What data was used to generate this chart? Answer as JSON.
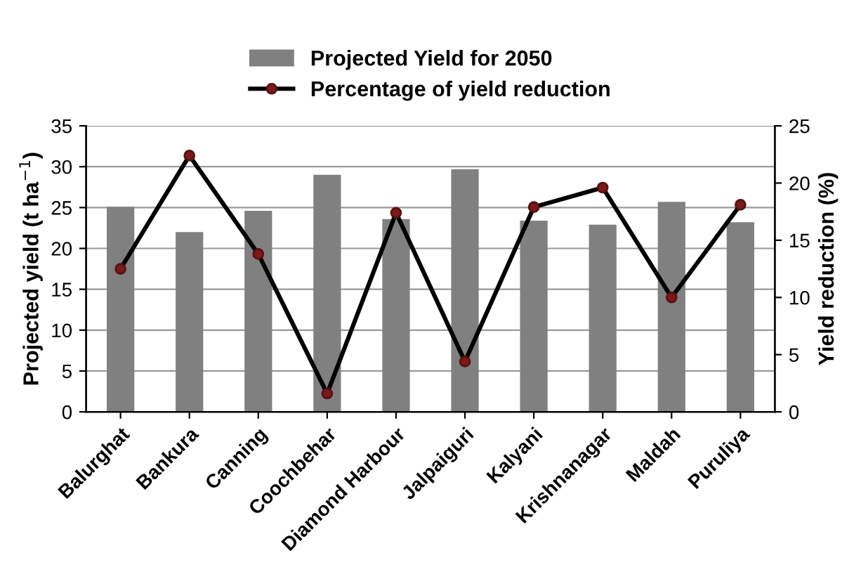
{
  "chart_data": {
    "type": "bar",
    "categories": [
      "Balurghat",
      "Bankura",
      "Canning",
      "Coochbehar",
      "Diamond Harbour",
      "Jalpaiguri",
      "Kalyani",
      "Krishnanagar",
      "Maldah",
      "Puruliya"
    ],
    "series": [
      {
        "name": "Projected Yield for 2050",
        "color": "#808080",
        "values": [
          25.1,
          22.0,
          24.6,
          29.0,
          23.6,
          29.7,
          23.4,
          22.9,
          25.7,
          23.2
        ]
      },
      {
        "name": "Percentage of yield reduction",
        "type": "line",
        "axis": "y2",
        "color": "#000000",
        "marker": "circle",
        "values": [
          12.5,
          22.4,
          13.8,
          1.6,
          17.4,
          4.4,
          17.9,
          19.6,
          10.0,
          18.1
        ]
      }
    ],
    "ylabel": "Projected yield (t ha$^{−1}$)",
    "y2label": "Yield reduction (%)",
    "ylim": [
      0,
      35
    ],
    "yticks": [
      0,
      5,
      10,
      15,
      20,
      25,
      30,
      35
    ],
    "y2lim": [
      0,
      25
    ],
    "y2ticks": [
      0,
      5,
      10,
      15,
      20,
      25
    ],
    "grid": "y",
    "legend": "top"
  }
}
